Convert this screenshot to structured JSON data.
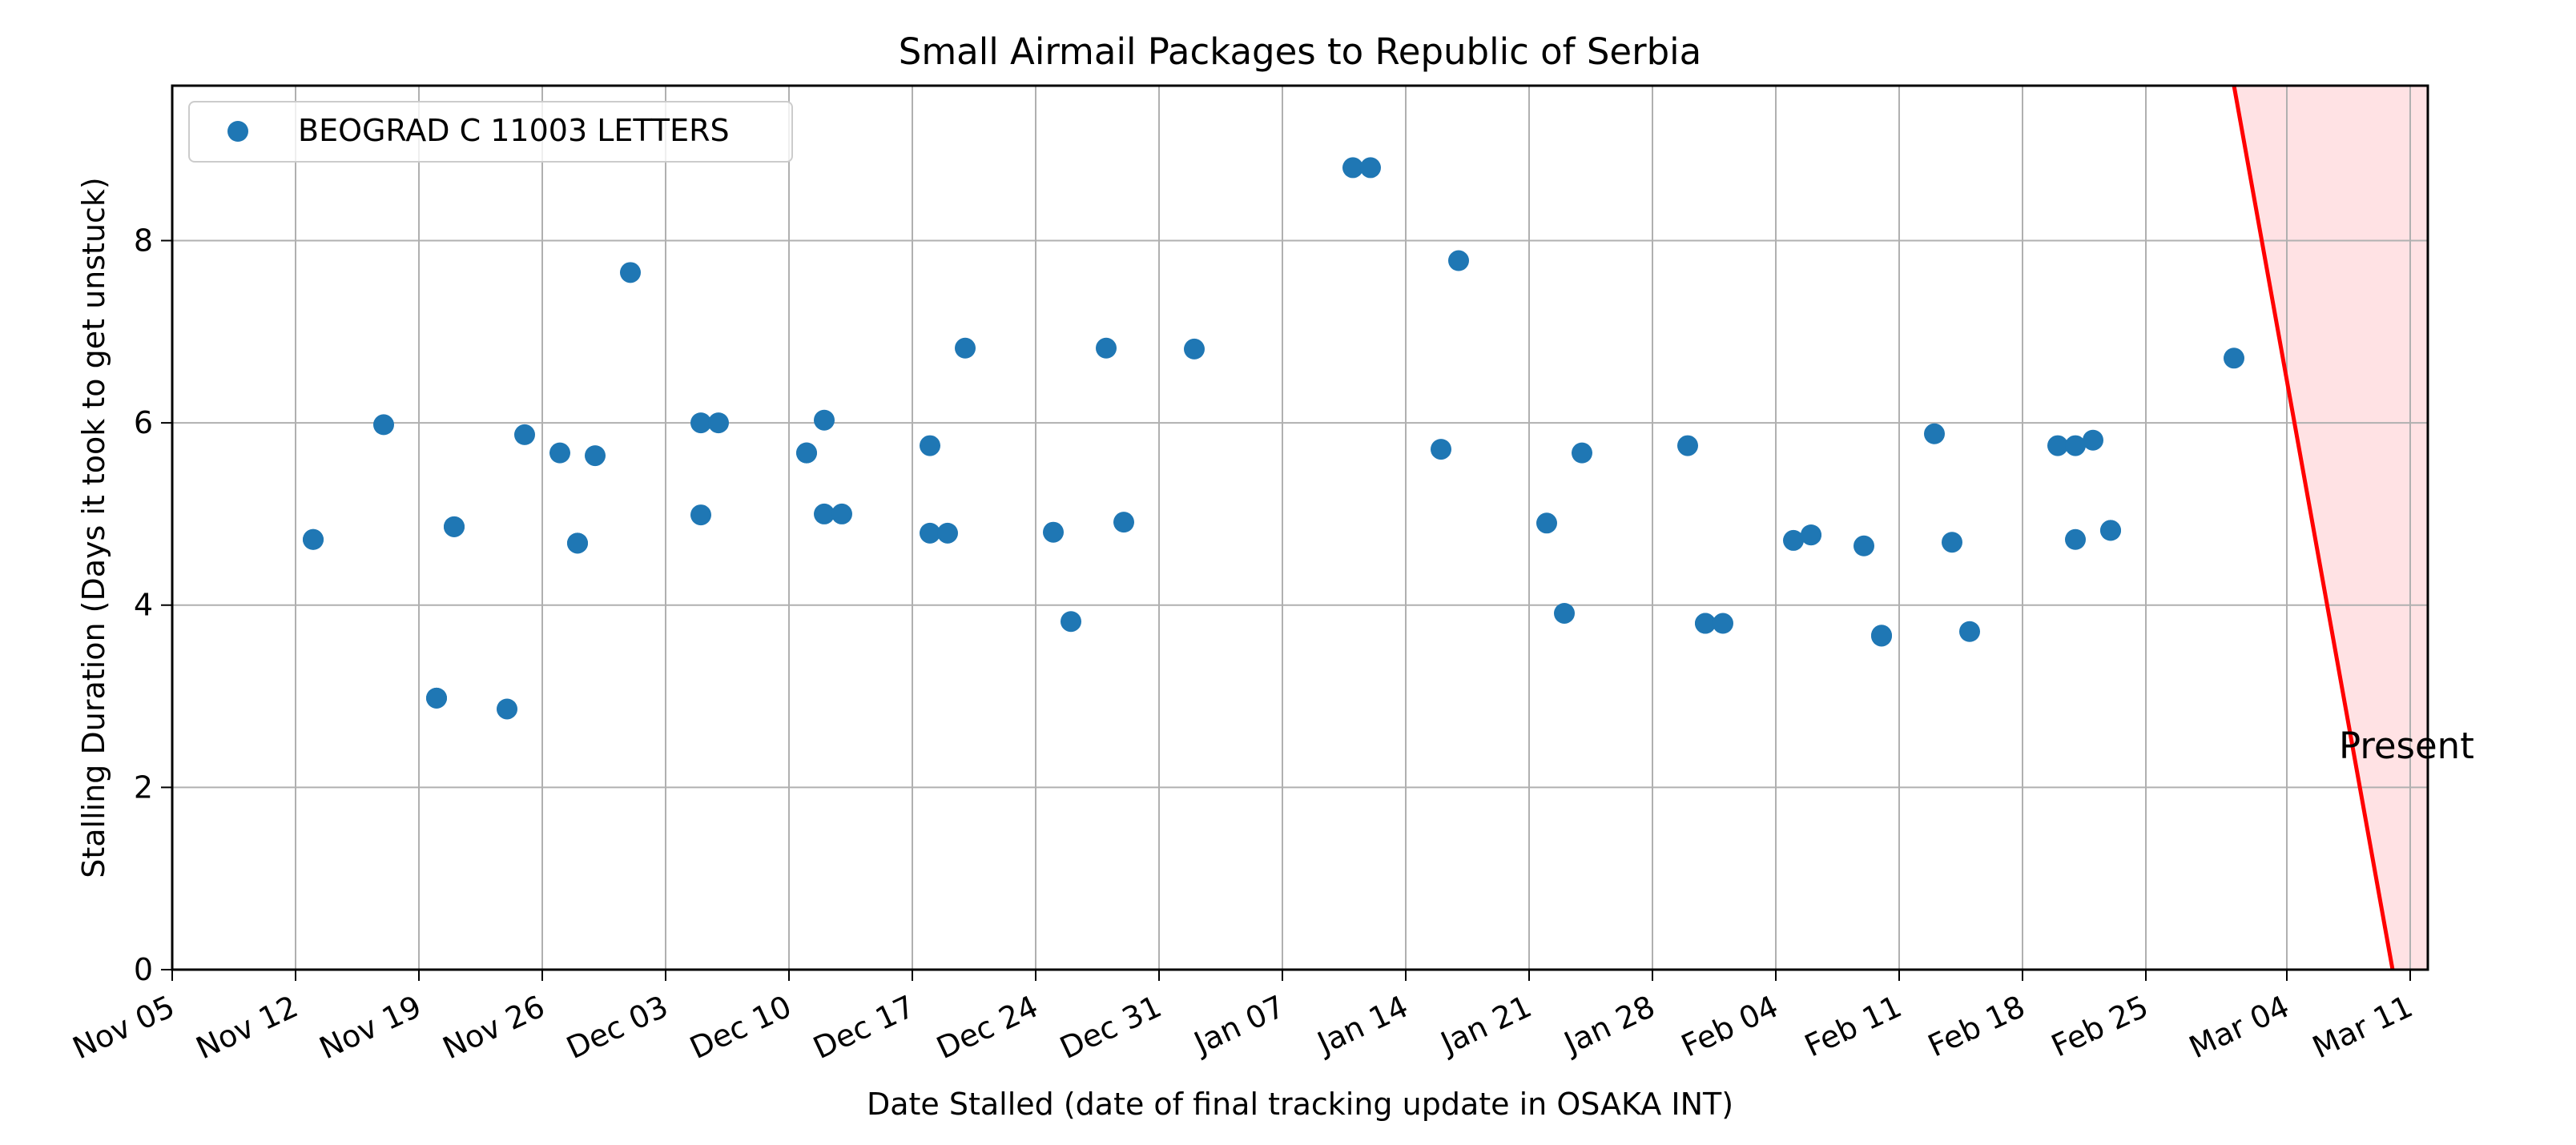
{
  "chart_data": {
    "type": "scatter",
    "title": "Small Airmail Packages to Republic of Serbia",
    "xlabel": "Date Stalled (date of final tracking update in OSAKA INT)",
    "ylabel": "Stalling Duration (Days it took to get unstuck)",
    "x_range": [
      "Nov 05",
      "Mar 12"
    ],
    "ylim": [
      0,
      9.7
    ],
    "x_ticks": [
      "Nov 05",
      "Nov 12",
      "Nov 19",
      "Nov 26",
      "Dec 03",
      "Dec 10",
      "Dec 17",
      "Dec 24",
      "Dec 31",
      "Jan 07",
      "Jan 14",
      "Jan 21",
      "Jan 28",
      "Feb 04",
      "Feb 11",
      "Feb 18",
      "Feb 25",
      "Mar 04",
      "Mar 11"
    ],
    "y_ticks": [
      0,
      2,
      4,
      6,
      8
    ],
    "grid": true,
    "legend_position": "top-left",
    "point_color": "#1f77b4",
    "present_color": "#ff0000",
    "present_fill": "#ffe2e4",
    "present_label": "Present",
    "present_line": {
      "top": "Mar 01",
      "bottom": "Mar 10"
    },
    "series": [
      {
        "name": "BEOGRAD C 11003 LETTERS",
        "points": [
          [
            "Nov 13",
            4.72
          ],
          [
            "Nov 13",
            4.72
          ],
          [
            "Nov 17",
            5.98
          ],
          [
            "Nov 20",
            2.98
          ],
          [
            "Nov 20",
            2.98
          ],
          [
            "Nov 21",
            4.86
          ],
          [
            "Nov 21",
            4.86
          ],
          [
            "Nov 24",
            2.86
          ],
          [
            "Nov 25",
            5.87
          ],
          [
            "Nov 27",
            5.67
          ],
          [
            "Nov 28",
            4.68
          ],
          [
            "Nov 28",
            4.68
          ],
          [
            "Nov 29",
            5.64
          ],
          [
            "Dec 01",
            7.65
          ],
          [
            "Dec 05",
            6.0
          ],
          [
            "Dec 05",
            4.99
          ],
          [
            "Dec 06",
            6.0
          ],
          [
            "Dec 11",
            5.67
          ],
          [
            "Dec 11",
            5.67
          ],
          [
            "Dec 12",
            6.03
          ],
          [
            "Dec 12",
            5.0
          ],
          [
            "Dec 13",
            5.0
          ],
          [
            "Dec 18",
            5.75
          ],
          [
            "Dec 18",
            4.79
          ],
          [
            "Dec 19",
            4.79
          ],
          [
            "Dec 20",
            6.82
          ],
          [
            "Dec 25",
            4.8
          ],
          [
            "Dec 26",
            3.82
          ],
          [
            "Dec 28",
            6.82
          ],
          [
            "Dec 29",
            4.91
          ],
          [
            "Jan 02",
            6.81
          ],
          [
            "Jan 11",
            8.8
          ],
          [
            "Jan 12",
            8.8
          ],
          [
            "Jan 16",
            5.71
          ],
          [
            "Jan 17",
            7.78
          ],
          [
            "Jan 22",
            4.9
          ],
          [
            "Jan 23",
            3.91
          ],
          [
            "Jan 24",
            5.67
          ],
          [
            "Jan 30",
            5.75
          ],
          [
            "Jan 31",
            3.8
          ],
          [
            "Jan 31",
            3.8
          ],
          [
            "Feb 01",
            3.8
          ],
          [
            "Feb 05",
            4.71
          ],
          [
            "Feb 06",
            4.77
          ],
          [
            "Feb 06",
            4.77
          ],
          [
            "Feb 09",
            4.65
          ],
          [
            "Feb 10",
            3.67
          ],
          [
            "Feb 10",
            3.66
          ],
          [
            "Feb 13",
            5.88
          ],
          [
            "Feb 14",
            4.69
          ],
          [
            "Feb 15",
            3.71
          ],
          [
            "Feb 20",
            5.75
          ],
          [
            "Feb 21",
            5.75
          ],
          [
            "Feb 21",
            4.72
          ],
          [
            "Feb 22",
            5.81
          ],
          [
            "Feb 23",
            4.82
          ],
          [
            "Feb 23",
            4.82
          ],
          [
            "Mar 01",
            6.71
          ]
        ]
      }
    ]
  }
}
